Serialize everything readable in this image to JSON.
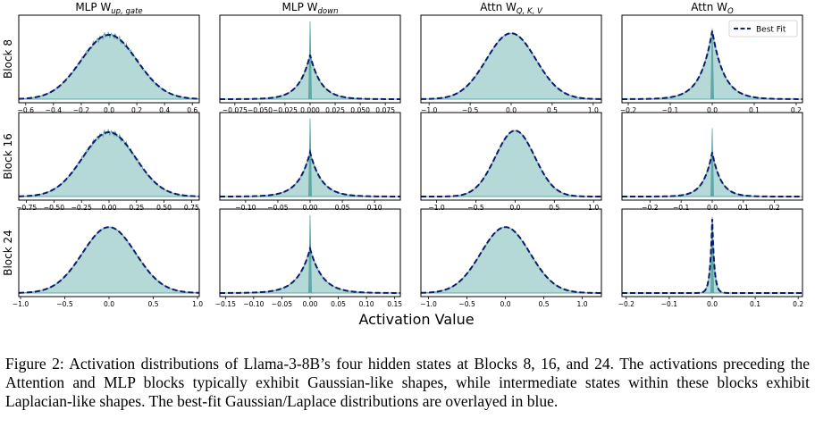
{
  "chart_data": {
    "type": "density_grid",
    "columns": [
      {
        "label": "MLP W",
        "subscript": "up, gate"
      },
      {
        "label": "MLP W",
        "subscript": "down"
      },
      {
        "label": "Attn W",
        "subscript": "Q, K, V"
      },
      {
        "label": "Attn W",
        "subscript": "O"
      }
    ],
    "rows": [
      "Block 8",
      "Block 16",
      "Block 24"
    ],
    "xlabel": "Activation Value",
    "legend": {
      "entry": "Best Fit",
      "style": "dashed",
      "color": "#1a237e",
      "location": "top-right of Attn W_O, Block 8"
    },
    "colors": {
      "hist_fill": "#b4d9d6",
      "hist_line": "#5fa8a8",
      "fit_line": "#0d1a6e"
    },
    "panels": [
      {
        "row": 0,
        "col": 0,
        "dist": "gaussian",
        "center": 0,
        "scale": 0.2,
        "peak": 0.8,
        "xlim": [
          -0.65,
          0.65
        ],
        "noise": true,
        "ticks": [
          -0.6,
          -0.4,
          -0.2,
          0.0,
          0.2,
          0.4,
          0.6
        ],
        "tick_labels": [
          "−0.6",
          "−0.4",
          "−0.2",
          "0.0",
          "0.2",
          "0.4",
          "0.6"
        ]
      },
      {
        "row": 0,
        "col": 1,
        "dist": "laplace",
        "center": 0,
        "scale": 0.011,
        "peak": 0.55,
        "spike": 0.97,
        "xlim": [
          -0.09,
          0.09
        ],
        "ticks": [
          -0.075,
          -0.05,
          -0.025,
          0.0,
          0.025,
          0.05,
          0.075
        ],
        "tick_labels": [
          "−0.075",
          "−0.050",
          "−0.025",
          "0.000",
          "0.025",
          "0.050",
          "0.075"
        ]
      },
      {
        "row": 0,
        "col": 2,
        "dist": "gaussian",
        "center": 0,
        "scale": 0.3,
        "peak": 0.82,
        "xlim": [
          -1.1,
          1.1
        ],
        "ticks": [
          -1.0,
          -0.5,
          0.0,
          0.5,
          1.0
        ],
        "tick_labels": [
          "−1.0",
          "−0.5",
          "0.0",
          "0.5",
          "1.0"
        ]
      },
      {
        "row": 0,
        "col": 3,
        "dist": "laplace",
        "center": 0,
        "scale": 0.028,
        "peak": 0.85,
        "spike": 0.88,
        "xlim": [
          -0.215,
          0.215
        ],
        "ticks": [
          -0.2,
          -0.1,
          0.0,
          0.1,
          0.2
        ],
        "tick_labels": [
          "−0.2",
          "−0.1",
          "0.0",
          "0.1",
          "0.2"
        ]
      },
      {
        "row": 1,
        "col": 0,
        "dist": "gaussian",
        "center": 0,
        "scale": 0.24,
        "peak": 0.8,
        "xlim": [
          -0.82,
          0.82
        ],
        "noise": true,
        "ticks": [
          -0.75,
          -0.5,
          -0.25,
          0.0,
          0.25,
          0.5,
          0.75
        ],
        "tick_labels": [
          "−0.75",
          "−0.50",
          "−0.25",
          "0.00",
          "0.25",
          "0.50",
          "0.75"
        ]
      },
      {
        "row": 1,
        "col": 1,
        "dist": "laplace",
        "center": 0,
        "scale": 0.018,
        "peak": 0.55,
        "spike": 0.97,
        "xlim": [
          -0.14,
          0.14
        ],
        "ticks": [
          -0.1,
          -0.05,
          0.0,
          0.05,
          0.1
        ],
        "tick_labels": [
          "−0.10",
          "−0.05",
          "0.00",
          "0.05",
          "0.10"
        ]
      },
      {
        "row": 1,
        "col": 2,
        "dist": "gaussian",
        "center": 0,
        "scale": 0.25,
        "peak": 0.82,
        "xlim": [
          -1.2,
          1.1
        ],
        "ticks": [
          -1.0,
          -0.5,
          0.0,
          0.5,
          1.0
        ],
        "tick_labels": [
          "−1.0",
          "−0.5",
          "0.0",
          "0.5",
          "1.0"
        ]
      },
      {
        "row": 1,
        "col": 3,
        "dist": "laplace",
        "center": 0,
        "scale": 0.028,
        "peak": 0.55,
        "spike": 0.85,
        "xlim": [
          -0.29,
          0.29
        ],
        "ticks": [
          -0.2,
          -0.1,
          0.0,
          0.1,
          0.2
        ],
        "tick_labels": [
          "−0.2",
          "−0.1",
          "0.0",
          "0.1",
          "0.2"
        ]
      },
      {
        "row": 2,
        "col": 0,
        "dist": "gaussian",
        "center": 0,
        "scale": 0.3,
        "peak": 0.82,
        "xlim": [
          -1.02,
          1.02
        ],
        "ticks": [
          -1.0,
          -0.5,
          0.0,
          0.5,
          1.0
        ],
        "tick_labels": [
          "−1.0",
          "−0.5",
          "0.0",
          "0.5",
          "1.0"
        ]
      },
      {
        "row": 2,
        "col": 1,
        "dist": "laplace",
        "center": 0,
        "scale": 0.022,
        "peak": 0.55,
        "spike": 0.97,
        "xlim": [
          -0.16,
          0.16
        ],
        "ticks": [
          -0.15,
          -0.1,
          -0.05,
          0.0,
          0.05,
          0.1,
          0.15
        ],
        "tick_labels": [
          "−0.15",
          "−0.10",
          "−0.05",
          "0.00",
          "0.05",
          "0.10",
          "0.15"
        ]
      },
      {
        "row": 2,
        "col": 2,
        "dist": "gaussian",
        "center": 0,
        "scale": 0.32,
        "peak": 0.82,
        "xlim": [
          -1.1,
          1.25
        ],
        "ticks": [
          -1.0,
          -0.5,
          0.0,
          0.5,
          1.0
        ],
        "tick_labels": [
          "−1.0",
          "−0.5",
          "0.0",
          "0.5",
          "1.0"
        ]
      },
      {
        "row": 2,
        "col": 3,
        "dist": "laplace",
        "center": 0,
        "scale": 0.005,
        "peak": 0.92,
        "spike": 0.95,
        "xlim": [
          -0.21,
          0.21
        ],
        "ticks": [
          -0.2,
          -0.1,
          0.0,
          0.1,
          0.2
        ],
        "tick_labels": [
          "−0.2",
          "−0.1",
          "0.0",
          "0.1",
          "0.2"
        ]
      }
    ]
  },
  "caption": "Figure 2: Activation distributions of Llama-3-8B’s four hidden states at Blocks 8, 16, and 24. The activations preceding the Attention and MLP blocks typically exhibit Gaussian-like shapes, while intermediate states within these blocks exhibit Laplacian-like shapes. The best-fit Gaussian/Laplace distributions are overlayed in blue."
}
